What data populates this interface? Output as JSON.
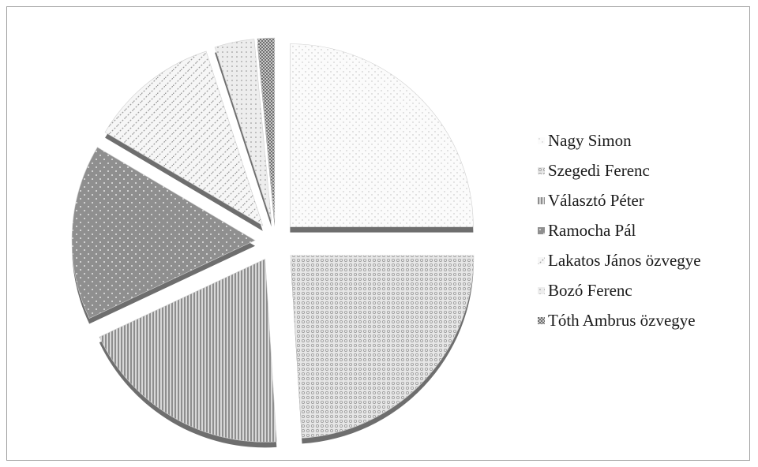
{
  "chart_data": {
    "type": "pie",
    "title": "",
    "categories": [
      "Nagy Simon",
      "Szegedi Ferenc",
      "Választó Péter",
      "Ramocha Pál",
      "Lakatos János özvegye",
      "Bozó Ferenc",
      "Tóth Ambrus özvegye"
    ],
    "values": [
      25.0,
      24.0,
      19.0,
      15.5,
      11.5,
      3.5,
      1.5
    ],
    "legend_position": "right",
    "exploded": true,
    "three_d": true,
    "colors": [
      "#f7f7f7",
      "#cfcfcf",
      "#b3b3b3",
      "#8c8c8c",
      "#eeeeee",
      "#e2e2e2",
      "#a8a8a8"
    ]
  }
}
